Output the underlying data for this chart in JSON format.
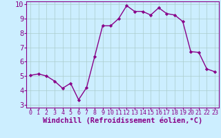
{
  "x": [
    0,
    1,
    2,
    3,
    4,
    5,
    6,
    7,
    8,
    9,
    10,
    11,
    12,
    13,
    14,
    15,
    16,
    17,
    18,
    19,
    20,
    21,
    22,
    23
  ],
  "y": [
    5.05,
    5.15,
    5.0,
    4.65,
    4.15,
    4.5,
    3.35,
    4.2,
    6.35,
    8.5,
    8.5,
    9.0,
    9.9,
    9.5,
    9.5,
    9.25,
    9.75,
    9.35,
    9.25,
    8.8,
    6.7,
    6.65,
    5.5,
    5.3
  ],
  "line_color": "#880088",
  "marker": "D",
  "marker_size": 2.2,
  "bg_color": "#cceeff",
  "grid_color": "#aacccc",
  "xlabel": "Windchill (Refroidissement éolien,°C)",
  "xlabel_color": "#880088",
  "xlim": [
    -0.5,
    23.5
  ],
  "ylim": [
    2.8,
    10.2
  ],
  "yticks": [
    3,
    4,
    5,
    6,
    7,
    8,
    9,
    10
  ],
  "xticks": [
    0,
    1,
    2,
    3,
    4,
    5,
    6,
    7,
    8,
    9,
    10,
    11,
    12,
    13,
    14,
    15,
    16,
    17,
    18,
    19,
    20,
    21,
    22,
    23
  ],
  "tick_color": "#880088",
  "ytick_labelsize": 7.5,
  "xtick_labelsize": 6.0,
  "xlabel_fontsize": 7.5,
  "line_width": 1.0,
  "spine_color": "#880088"
}
